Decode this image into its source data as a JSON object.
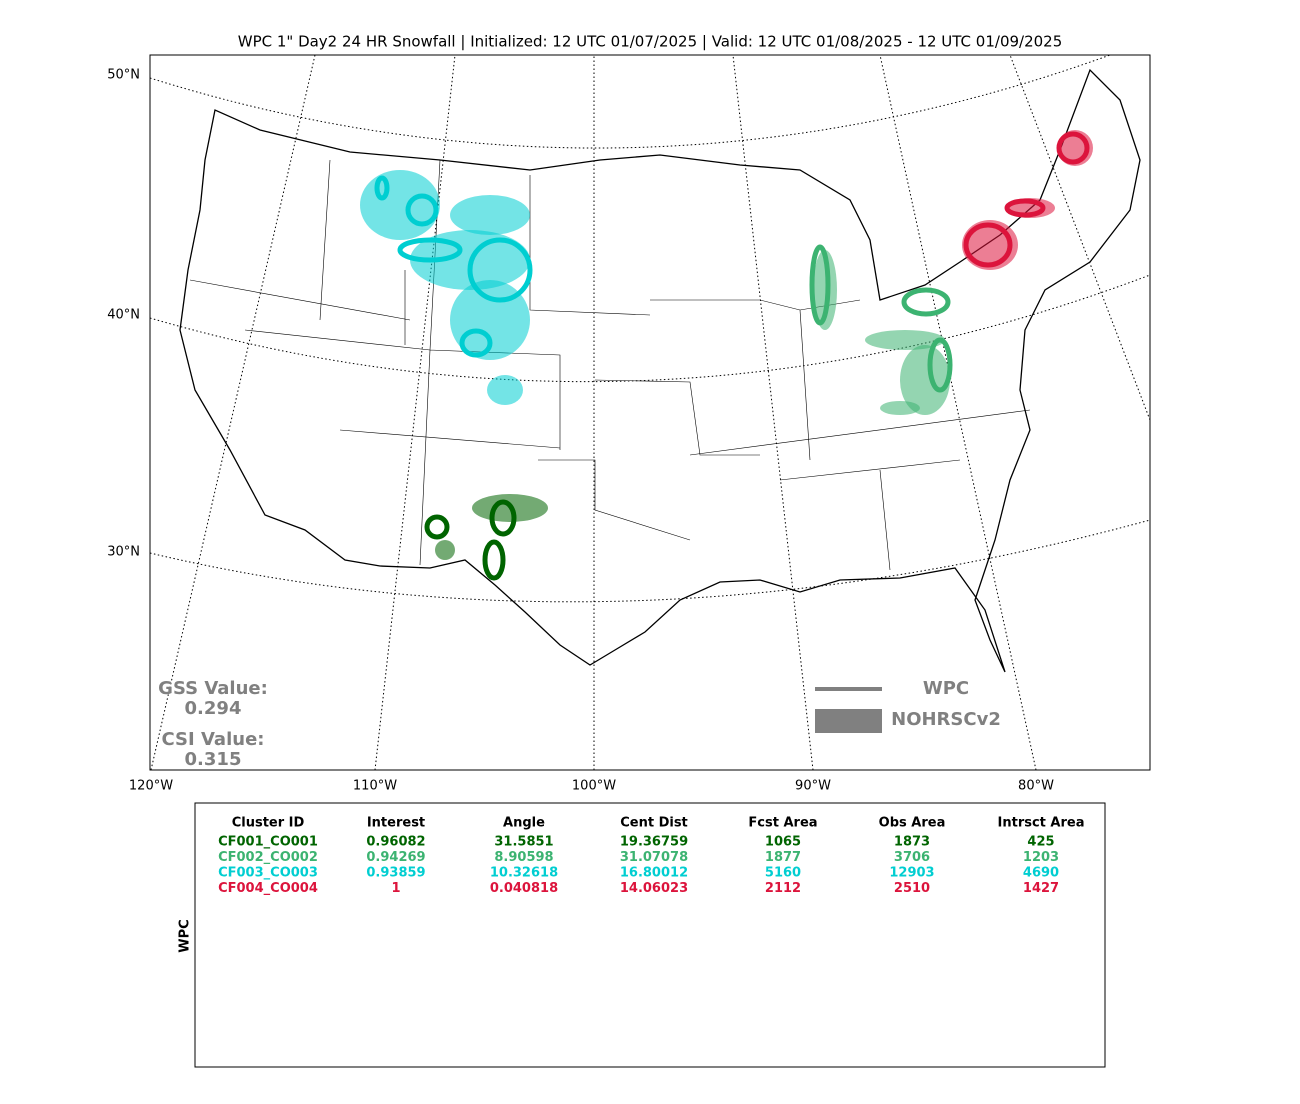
{
  "title": "WPC 1\" Day2 24 HR Snowfall | Initialized: 12 UTC 01/07/2025 | Valid: 12 UTC 01/08/2025 - 12 UTC 01/09/2025",
  "map": {
    "lat_labels": [
      "50°N",
      "40°N",
      "30°N"
    ],
    "lon_labels": [
      "120°W",
      "110°W",
      "100°W",
      "90°W",
      "80°W"
    ],
    "gss_label": "GSS Value:",
    "gss": 0.294,
    "csi_label": "CSI Value:",
    "csi": 0.315,
    "legend": [
      "WPC",
      "NOHRSCv2"
    ]
  },
  "table": {
    "side_label": "WPC",
    "columns": [
      "Cluster ID",
      "Interest",
      "Angle",
      "Cent Dist",
      "Fcst Area",
      "Obs Area",
      "Intrsct Area"
    ],
    "rows": [
      {
        "color": "#006400",
        "cells": [
          "CF001_CO001",
          0.96082,
          31.5851,
          19.36759,
          1065,
          1873,
          425
        ]
      },
      {
        "color": "#3cb371",
        "cells": [
          "CF002_CO002",
          0.94269,
          8.90598,
          31.07078,
          1877,
          3706,
          1203
        ]
      },
      {
        "color": "#00ced1",
        "cells": [
          "CF003_CO003",
          0.93859,
          10.32618,
          16.80012,
          5160,
          12903,
          4690
        ]
      },
      {
        "color": "#dc143c",
        "cells": [
          "CF004_CO004",
          1,
          0.040818,
          14.06023,
          2112,
          2510,
          1427
        ]
      }
    ]
  }
}
